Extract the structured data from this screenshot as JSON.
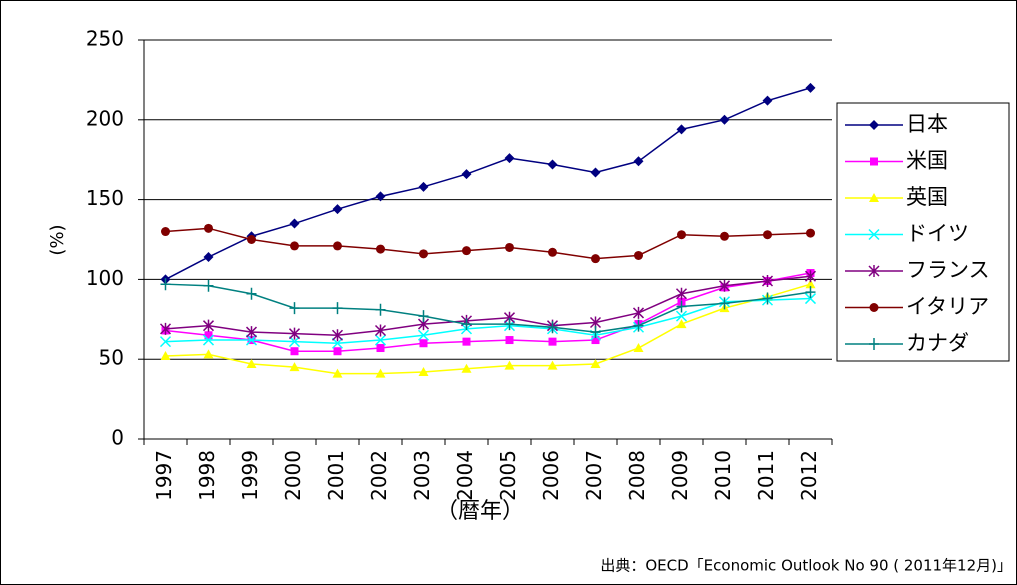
{
  "chart_data": {
    "type": "line",
    "categories": [
      "1997",
      "1998",
      "1999",
      "2000",
      "2001",
      "2002",
      "2003",
      "2004",
      "2005",
      "2006",
      "2007",
      "2008",
      "2009",
      "2010",
      "2011",
      "2012"
    ],
    "series": [
      {
        "name": "日本",
        "color": "#000080",
        "marker": "diamond",
        "values": [
          100,
          114,
          127,
          135,
          144,
          152,
          158,
          166,
          176,
          172,
          167,
          174,
          194,
          200,
          212,
          220
        ]
      },
      {
        "name": "米国",
        "color": "#ff00ff",
        "marker": "square",
        "values": [
          68,
          65,
          62,
          55,
          55,
          57,
          60,
          61,
          62,
          61,
          62,
          72,
          86,
          95,
          99,
          104
        ]
      },
      {
        "name": "英国",
        "color": "#ffff00",
        "marker": "triangle",
        "values": [
          52,
          53,
          47,
          45,
          41,
          41,
          42,
          44,
          46,
          46,
          47,
          57,
          72,
          82,
          89,
          97
        ]
      },
      {
        "name": "ドイツ",
        "color": "#00ffff",
        "marker": "x",
        "values": [
          61,
          62,
          62,
          61,
          60,
          62,
          65,
          69,
          71,
          69,
          65,
          70,
          77,
          86,
          87,
          88
        ]
      },
      {
        "name": "フランス",
        "color": "#800080",
        "marker": "star",
        "values": [
          69,
          71,
          67,
          66,
          65,
          68,
          72,
          74,
          76,
          71,
          73,
          79,
          91,
          96,
          99,
          102
        ]
      },
      {
        "name": "イタリア",
        "color": "#800000",
        "marker": "circle",
        "values": [
          130,
          132,
          125,
          121,
          121,
          119,
          116,
          118,
          120,
          117,
          113,
          115,
          128,
          127,
          128,
          129
        ]
      },
      {
        "name": "カナダ",
        "color": "#008080",
        "marker": "plus",
        "values": [
          97,
          96,
          91,
          82,
          82,
          81,
          77,
          72,
          72,
          70,
          67,
          71,
          83,
          85,
          88,
          92
        ]
      }
    ],
    "ylim": [
      0,
      250
    ],
    "yticks": [
      0,
      50,
      100,
      150,
      200,
      250
    ],
    "ylabel": "(%)",
    "xlabel": "（暦年）",
    "source": "出典：OECD「Economic Outlook No 90 ( 2011年12月)」",
    "grid": true,
    "legend": "right"
  }
}
